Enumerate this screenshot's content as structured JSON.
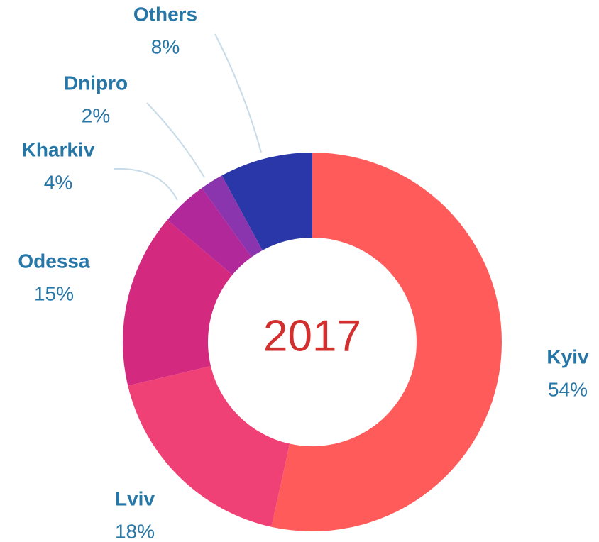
{
  "chart_data": {
    "type": "donut",
    "center_label": "2017",
    "categories": [
      "Kyiv",
      "Lviv",
      "Odessa",
      "Kharkiv",
      "Dnipro",
      "Others"
    ],
    "values": [
      54,
      18,
      15,
      4,
      2,
      8
    ],
    "value_labels": [
      "54%",
      "18%",
      "15%",
      "4%",
      "2%",
      "8%"
    ],
    "colors": [
      "#ff5b5b",
      "#ef4175",
      "#d3297f",
      "#b0289a",
      "#8a35ad",
      "#2a37a8"
    ]
  }
}
